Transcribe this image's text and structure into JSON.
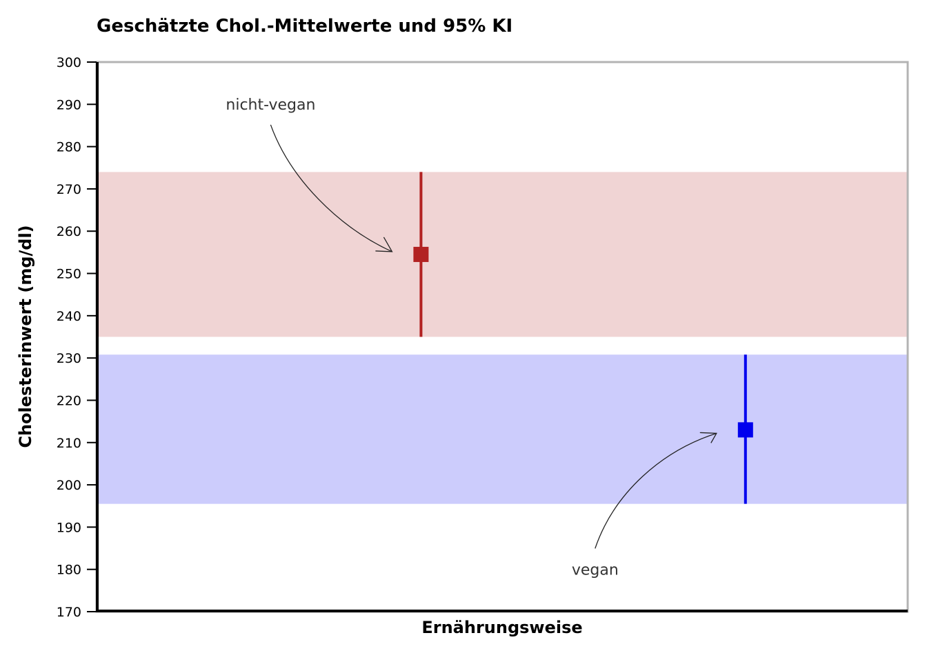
{
  "chart_data": {
    "type": "scatter",
    "title": "Geschätzte Chol.-Mittelwerte und 95% KI",
    "xlabel": "Ernährungsweise",
    "ylabel": "Cholesterinwert (mg/dl)",
    "ylim": [
      170,
      300
    ],
    "yticks": [
      170,
      180,
      190,
      200,
      210,
      220,
      230,
      240,
      250,
      260,
      270,
      280,
      290,
      300
    ],
    "grid": false,
    "legend": "none",
    "series": [
      {
        "label": "nicht-vegan",
        "x": 0.4,
        "mean": 254.5,
        "ci_low": 235,
        "ci_high": 274,
        "color": "#b22222",
        "band_color": "#f0d4d4"
      },
      {
        "label": "vegan",
        "x": 0.8,
        "mean": 213,
        "ci_low": 195.5,
        "ci_high": 230.8,
        "color": "#0000ee",
        "band_color": "#ccccfc"
      }
    ],
    "annotations": [
      {
        "text": "nicht-vegan",
        "target_series": 0
      },
      {
        "text": "vegan",
        "target_series": 1
      }
    ]
  }
}
